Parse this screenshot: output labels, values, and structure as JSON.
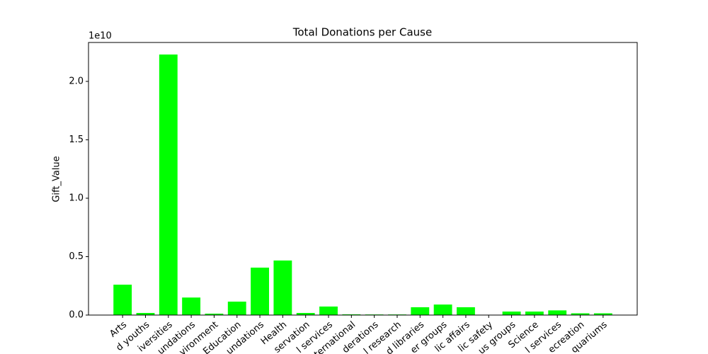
{
  "chart_data": {
    "type": "bar",
    "title": "Total Donations per Cause",
    "y_label": "Gift_Value",
    "y_offset_text": "1e10",
    "categories": [
      "Arts",
      "d youths",
      "iversities",
      "undations",
      "vironment",
      "Education",
      "undations",
      "Health",
      "servation",
      "l services",
      "ternational",
      "derations",
      "l research",
      "d libraries",
      "er groups",
      "lic affairs",
      "lic safety",
      "us groups",
      "Science",
      "l services",
      "ecreation",
      "quariums"
    ],
    "values": [
      2600000000,
      180000000,
      22300000000,
      1500000000,
      120000000,
      1150000000,
      4060000000,
      4670000000,
      180000000,
      730000000,
      60000000,
      50000000,
      50000000,
      670000000,
      900000000,
      670000000,
      10000000,
      300000000,
      300000000,
      400000000,
      150000000,
      150000000
    ],
    "color": "#00ff00",
    "ylim": [
      0,
      23330000000
    ],
    "yticks": [
      {
        "value": 0,
        "label": "0.0"
      },
      {
        "value": 5000000000,
        "label": "0.5"
      },
      {
        "value": 10000000000,
        "label": "1.0"
      },
      {
        "value": 15000000000,
        "label": "1.5"
      },
      {
        "value": 20000000000,
        "label": "2.0"
      }
    ],
    "grid": false
  }
}
